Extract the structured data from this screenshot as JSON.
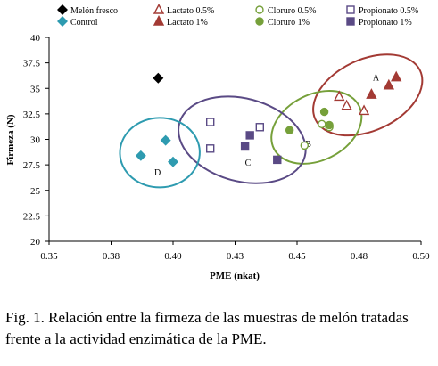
{
  "chart_data": {
    "type": "scatter",
    "xlabel": "PME (nkat)",
    "ylabel": "Firmeza (N)",
    "xlim": [
      0.35,
      0.5
    ],
    "ylim": [
      20,
      40
    ],
    "x_ticks": [
      "0.35",
      "0.38",
      "0.40",
      "0.43",
      "0.45",
      "0.48",
      "0.50"
    ],
    "y_ticks": [
      "20",
      "22.5",
      "25",
      "27.5",
      "30",
      "32.5",
      "35",
      "37.5",
      "40"
    ],
    "legend_position": "top",
    "series": [
      {
        "name": "Melón fresco",
        "marker": "diamond",
        "fill": "filled",
        "color": "#000000",
        "points": [
          [
            0.394,
            36.0
          ]
        ]
      },
      {
        "name": "Control",
        "marker": "diamond",
        "fill": "filled",
        "color": "#2e9bb0",
        "points": [
          [
            0.387,
            28.4
          ],
          [
            0.397,
            29.9
          ],
          [
            0.4,
            27.8
          ]
        ]
      },
      {
        "name": "Lactato 0.5%",
        "marker": "triangle",
        "fill": "open",
        "color": "#a33a34",
        "points": [
          [
            0.467,
            34.2
          ],
          [
            0.47,
            33.3
          ],
          [
            0.477,
            32.8
          ]
        ]
      },
      {
        "name": "Lactato 1%",
        "marker": "triangle",
        "fill": "filled",
        "color": "#a33a34",
        "points": [
          [
            0.48,
            34.4
          ],
          [
            0.487,
            35.3
          ],
          [
            0.49,
            36.1
          ]
        ]
      },
      {
        "name": "Cloruro 0.5%",
        "marker": "circle",
        "fill": "open",
        "color": "#76a03a",
        "points": [
          [
            0.453,
            29.4
          ],
          [
            0.46,
            31.5
          ],
          [
            0.463,
            31.2
          ]
        ]
      },
      {
        "name": "Cloruro 1%",
        "marker": "circle",
        "fill": "filled",
        "color": "#76a03a",
        "points": [
          [
            0.447,
            30.9
          ],
          [
            0.461,
            32.7
          ],
          [
            0.463,
            31.4
          ]
        ]
      },
      {
        "name": "Propionato 0.5%",
        "marker": "square",
        "fill": "open",
        "color": "#5a4a85",
        "points": [
          [
            0.415,
            31.7
          ],
          [
            0.415,
            29.1
          ],
          [
            0.435,
            31.2
          ]
        ]
      },
      {
        "name": "Propionato 1%",
        "marker": "square",
        "fill": "filled",
        "color": "#5a4a85",
        "points": [
          [
            0.429,
            29.3
          ],
          [
            0.431,
            30.4
          ],
          [
            0.442,
            28.0
          ]
        ]
      }
    ],
    "clusters": [
      {
        "label": "A",
        "color": "#a33a34"
      },
      {
        "label": "B",
        "color": "#76a03a"
      },
      {
        "label": "C",
        "color": "#5a4a85"
      },
      {
        "label": "D",
        "color": "#2e9bb0"
      }
    ]
  },
  "caption": "Fig. 1. Relación entre la firmeza de las muestras de melón tratadas frente a la actividad enzimática de la PME."
}
